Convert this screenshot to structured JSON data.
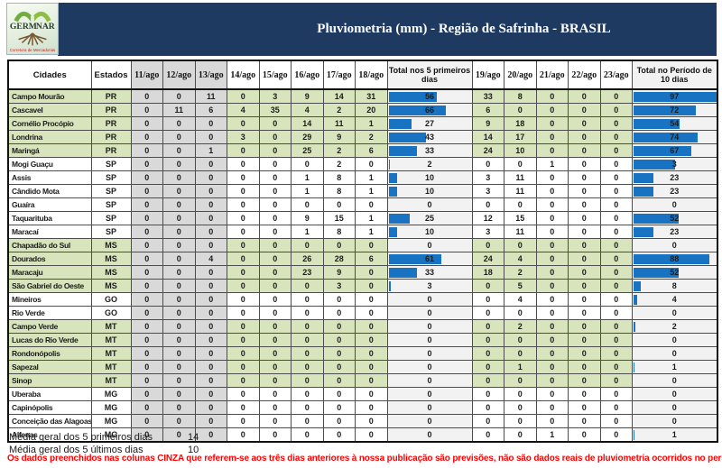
{
  "logo": {
    "name1": "GERM",
    "name2": "NAR",
    "caption": "Corretora de Mercadorias"
  },
  "header": {
    "title": "Pluviometria (mm) - Região de Safrinha - BRASIL"
  },
  "table": {
    "col_city": "Cidades",
    "col_state": "Estados",
    "days1": [
      "11/ago",
      "12/ago",
      "13/ago",
      "14/ago",
      "15/ago",
      "16/ago",
      "17/ago",
      "18/ago"
    ],
    "col_total5": "Total nos 5 primeiros dias",
    "days2": [
      "19/ago",
      "20/ago",
      "21/ago",
      "22/ago",
      "23/ago"
    ],
    "col_total10": "Total no Período de 10 dias",
    "gray_day_count": 3,
    "bar_scale_max": 97,
    "green_states": [
      "PR",
      "MS",
      "MT"
    ],
    "rows": [
      {
        "city": "Campo Mourão",
        "state": "PR",
        "d": [
          0,
          0,
          11,
          0,
          3,
          9,
          14,
          31
        ],
        "t5": 56,
        "d2": [
          33,
          8,
          0,
          0,
          0
        ],
        "t10": 97
      },
      {
        "city": "Cascavel",
        "state": "PR",
        "d": [
          0,
          11,
          6,
          4,
          35,
          4,
          2,
          20
        ],
        "t5": 66,
        "d2": [
          6,
          0,
          0,
          0,
          0
        ],
        "t10": 72
      },
      {
        "city": "Cornélio Procópio",
        "state": "PR",
        "d": [
          0,
          0,
          0,
          0,
          0,
          14,
          11,
          1
        ],
        "t5": 27,
        "d2": [
          9,
          18,
          0,
          0,
          0
        ],
        "t10": 54
      },
      {
        "city": "Londrina",
        "state": "PR",
        "d": [
          0,
          0,
          0,
          3,
          0,
          29,
          9,
          2
        ],
        "t5": 43,
        "d2": [
          14,
          17,
          0,
          0,
          0
        ],
        "t10": 74
      },
      {
        "city": "Maringá",
        "state": "PR",
        "d": [
          0,
          0,
          1,
          0,
          0,
          25,
          2,
          6
        ],
        "t5": 33,
        "d2": [
          24,
          10,
          0,
          0,
          0
        ],
        "t10": 67
      },
      {
        "city": "Mogi Guaçu",
        "state": "SP",
        "d": [
          0,
          0,
          0,
          0,
          0,
          0,
          2,
          0
        ],
        "t5": 2,
        "d2": [
          0,
          0,
          1,
          0,
          0
        ],
        "t10": 3,
        "bar10_pct": 50
      },
      {
        "city": "Assis",
        "state": "SP",
        "d": [
          0,
          0,
          0,
          0,
          0,
          1,
          8,
          1
        ],
        "t5": 10,
        "d2": [
          3,
          11,
          0,
          0,
          0
        ],
        "t10": 23
      },
      {
        "city": "Cândido Mota",
        "state": "SP",
        "d": [
          0,
          0,
          0,
          0,
          0,
          1,
          8,
          1
        ],
        "t5": 10,
        "d2": [
          3,
          11,
          0,
          0,
          0
        ],
        "t10": 23
      },
      {
        "city": "Guaíra",
        "state": "SP",
        "d": [
          0,
          0,
          0,
          0,
          0,
          0,
          0,
          0
        ],
        "t5": 0,
        "d2": [
          0,
          0,
          0,
          0,
          0
        ],
        "t10": 0
      },
      {
        "city": "Taquarituba",
        "state": "SP",
        "d": [
          0,
          0,
          0,
          0,
          0,
          9,
          15,
          1
        ],
        "t5": 25,
        "d2": [
          12,
          15,
          0,
          0,
          0
        ],
        "t10": 52
      },
      {
        "city": "Maracaí",
        "state": "SP",
        "d": [
          0,
          0,
          0,
          0,
          0,
          1,
          8,
          1
        ],
        "t5": 10,
        "d2": [
          3,
          11,
          0,
          0,
          0
        ],
        "t10": 23
      },
      {
        "city": "Chapadão do Sul",
        "state": "MS",
        "d": [
          0,
          0,
          0,
          0,
          0,
          0,
          0,
          0
        ],
        "t5": 0,
        "d2": [
          0,
          0,
          0,
          0,
          0
        ],
        "t10": 0
      },
      {
        "city": "Dourados",
        "state": "MS",
        "d": [
          0,
          0,
          4,
          0,
          0,
          26,
          28,
          6
        ],
        "t5": 61,
        "d2": [
          24,
          4,
          0,
          0,
          0
        ],
        "t10": 88
      },
      {
        "city": "Maracaju",
        "state": "MS",
        "d": [
          0,
          0,
          0,
          0,
          0,
          23,
          9,
          0
        ],
        "t5": 33,
        "d2": [
          18,
          2,
          0,
          0,
          0
        ],
        "t10": 52
      },
      {
        "city": "São Gabriel do Oeste",
        "state": "MS",
        "d": [
          0,
          0,
          0,
          0,
          0,
          0,
          3,
          0
        ],
        "t5": 3,
        "d2": [
          0,
          5,
          0,
          0,
          0
        ],
        "t10": 8
      },
      {
        "city": "Mineiros",
        "state": "GO",
        "d": [
          0,
          0,
          0,
          0,
          0,
          0,
          0,
          0
        ],
        "t5": 0,
        "d2": [
          0,
          4,
          0,
          0,
          0
        ],
        "t10": 4
      },
      {
        "city": "Rio Verde",
        "state": "GO",
        "d": [
          0,
          0,
          0,
          0,
          0,
          0,
          0,
          0
        ],
        "t5": 0,
        "d2": [
          0,
          0,
          0,
          0,
          0
        ],
        "t10": 0
      },
      {
        "city": "Campo Verde",
        "state": "MT",
        "d": [
          0,
          0,
          0,
          0,
          0,
          0,
          0,
          0
        ],
        "t5": 0,
        "d2": [
          0,
          2,
          0,
          0,
          0
        ],
        "t10": 2
      },
      {
        "city": "Lucas do Rio Verde",
        "state": "MT",
        "d": [
          0,
          0,
          0,
          0,
          0,
          0,
          0,
          0
        ],
        "t5": 0,
        "d2": [
          0,
          0,
          0,
          0,
          0
        ],
        "t10": 0
      },
      {
        "city": "Rondonópolis",
        "state": "MT",
        "d": [
          0,
          0,
          0,
          0,
          0,
          0,
          0,
          0
        ],
        "t5": 0,
        "d2": [
          0,
          0,
          0,
          0,
          0
        ],
        "t10": 0
      },
      {
        "city": "Sapezal",
        "state": "MT",
        "d": [
          0,
          0,
          0,
          0,
          0,
          0,
          0,
          0
        ],
        "t5": 0,
        "d2": [
          0,
          1,
          0,
          0,
          0
        ],
        "t10": 1
      },
      {
        "city": "Sinop",
        "state": "MT",
        "d": [
          0,
          0,
          0,
          0,
          0,
          0,
          0,
          0
        ],
        "t5": 0,
        "d2": [
          0,
          0,
          0,
          0,
          0
        ],
        "t10": 0
      },
      {
        "city": "Uberaba",
        "state": "MG",
        "d": [
          0,
          0,
          0,
          0,
          0,
          0,
          0,
          0
        ],
        "t5": 0,
        "d2": [
          0,
          0,
          0,
          0,
          0
        ],
        "t10": 0
      },
      {
        "city": "Capinópolis",
        "state": "MG",
        "d": [
          0,
          0,
          0,
          0,
          0,
          0,
          0,
          0
        ],
        "t5": 0,
        "d2": [
          0,
          0,
          0,
          0,
          0
        ],
        "t10": 0
      },
      {
        "city": "Conceição das Alagoas",
        "state": "MG",
        "d": [
          0,
          0,
          0,
          0,
          0,
          0,
          0,
          0
        ],
        "t5": 0,
        "d2": [
          0,
          0,
          0,
          0,
          0
        ],
        "t10": 0
      },
      {
        "city": "Alfenas",
        "state": "MG",
        "d": [
          0,
          0,
          0,
          0,
          0,
          0,
          0,
          0
        ],
        "t5": 0,
        "d2": [
          0,
          0,
          1,
          0,
          0
        ],
        "t10": 1
      }
    ]
  },
  "footer": {
    "avg1_label": "Média geral dos 5 primeiros dias",
    "avg1_value": "14",
    "avg2_label": "Média geral dos 5 últimos dias",
    "avg2_value": "10",
    "note": "Os dados preenchidos nas colunas CINZA que referem-se aos três dias anteriores à nossa publicação são previsões, não são dados reais de pluviometria ocorridos no período."
  },
  "colors": {
    "banner_navy": "#1F3A60",
    "data_bar_blue": "#1874C2",
    "green_row": "#D7E4BC",
    "gray_forecast": "#D9D9D9",
    "total_column_bg": "#F2F2F2",
    "note_red": "#FF0000"
  }
}
